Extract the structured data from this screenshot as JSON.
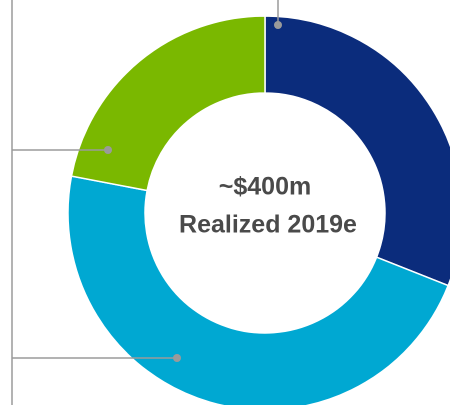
{
  "chart_data": {
    "type": "pie",
    "donut": true,
    "values": [
      31,
      47,
      22
    ],
    "colors": [
      "#0b2c7c",
      "#00a8d2",
      "#7ab800"
    ],
    "center_text": [
      "~$400m",
      "Realized 2019e"
    ]
  }
}
